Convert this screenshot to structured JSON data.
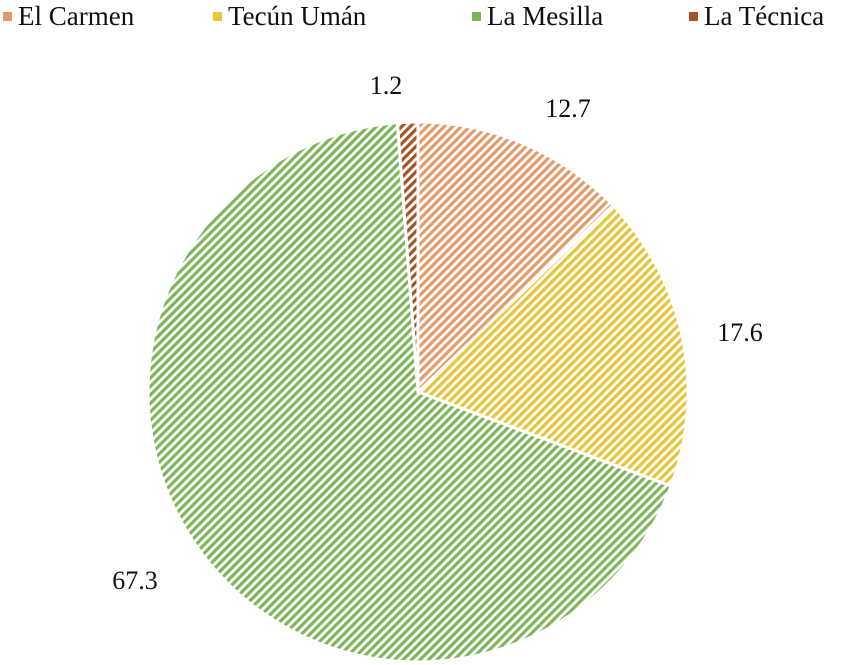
{
  "chart_data": {
    "type": "pie",
    "start": "top",
    "direction": "clockwise",
    "fill_style": "diagonal-hatch",
    "legend_position": "top",
    "categories": [
      "El Carmen",
      "Tecún Umán",
      "La Mesilla",
      "La Técnica"
    ],
    "values": [
      12.7,
      17.6,
      67.3,
      1.2
    ],
    "data_labels": [
      "12.7",
      "17.6",
      "67.3",
      "1.2"
    ],
    "colors": [
      "#e59a6a",
      "#e8c437",
      "#7db55a",
      "#a3552a"
    ]
  }
}
